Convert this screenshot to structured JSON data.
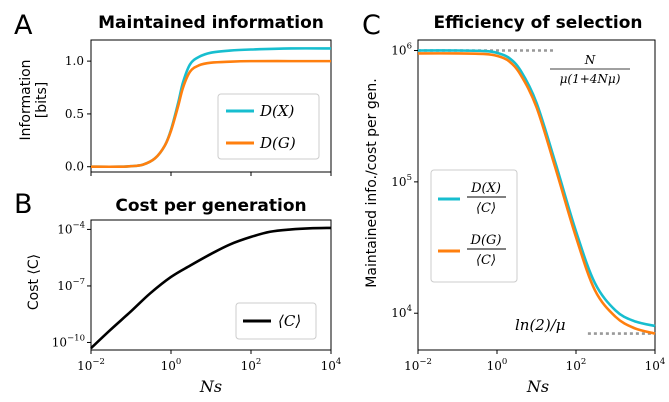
{
  "colors": {
    "dx": "#17becf",
    "dg": "#ff7f0e",
    "cost": "#000000",
    "ref": "#999999"
  },
  "chart_data": [
    {
      "panel": "A",
      "title": "Maintained information",
      "type": "line",
      "ylabel": [
        "Information",
        "[bits]"
      ],
      "xlabel": "",
      "xscale": "log",
      "xlim": [
        0.01,
        10000
      ],
      "ylim": [
        -0.05,
        1.2
      ],
      "yticks": [
        "0.0",
        "0.5",
        "1.0"
      ],
      "series": [
        {
          "name": "D(X)",
          "x": [
            0.01,
            0.05,
            0.1,
            0.2,
            0.4,
            0.7,
            1,
            1.5,
            2,
            3,
            5,
            10,
            30,
            100,
            1000,
            10000
          ],
          "y": [
            0,
            0,
            0.005,
            0.02,
            0.08,
            0.2,
            0.35,
            0.6,
            0.8,
            0.97,
            1.04,
            1.08,
            1.1,
            1.11,
            1.12,
            1.12
          ]
        },
        {
          "name": "D(G)",
          "x": [
            0.01,
            0.05,
            0.1,
            0.2,
            0.4,
            0.7,
            1,
            1.5,
            2,
            3,
            5,
            10,
            30,
            100,
            1000,
            10000
          ],
          "y": [
            0,
            0,
            0.005,
            0.02,
            0.08,
            0.2,
            0.34,
            0.57,
            0.75,
            0.9,
            0.96,
            0.985,
            0.995,
            1.0,
            1.0,
            1.0
          ]
        }
      ],
      "legend": "center-right"
    },
    {
      "panel": "B",
      "title": "Cost per generation",
      "type": "line",
      "ylabel": "Cost ⟨C⟩",
      "xlabel": "Ns",
      "xscale": "log",
      "yscale": "log",
      "xlim": [
        0.01,
        10000
      ],
      "yticks": [
        "10^-10",
        "10^-7",
        "10^-4"
      ],
      "xticks": [
        "10^-2",
        "10^0",
        "10^2",
        "10^4"
      ],
      "series": [
        {
          "name": "⟨C⟩",
          "x": [
            0.01,
            0.03,
            0.1,
            0.3,
            1,
            3,
            10,
            30,
            100,
            300,
            1000,
            3000,
            10000
          ],
          "y": [
            5e-11,
            4.5e-10,
            4.5e-09,
            4e-08,
            3e-07,
            1.2e-06,
            5e-06,
            1.6e-05,
            4e-05,
            7.5e-05,
            0.0001,
            0.000115,
            0.00012
          ]
        }
      ],
      "legend": "lower-right"
    },
    {
      "panel": "C",
      "title": "Efficiency of selection",
      "type": "line",
      "ylabel": "Maintained info./cost per gen.",
      "xlabel": "Ns",
      "xscale": "log",
      "yscale": "log",
      "xlim": [
        0.01,
        10000
      ],
      "yticks": [
        "10^4",
        "10^5",
        "10^6"
      ],
      "xticks": [
        "10^-2",
        "10^0",
        "10^2",
        "10^4"
      ],
      "series": [
        {
          "name": "D(X)/⟨C⟩",
          "x": [
            0.01,
            0.1,
            0.5,
            1,
            2,
            4,
            10,
            30,
            100,
            300,
            1000,
            3000,
            10000
          ],
          "y": [
            1000000,
            1000000,
            990000,
            960000,
            880000,
            700000,
            400000,
            140000,
            42000,
            17000,
            10500,
            8700,
            8000
          ]
        },
        {
          "name": "D(G)/⟨C⟩",
          "x": [
            0.01,
            0.1,
            0.5,
            1,
            2,
            4,
            10,
            30,
            100,
            300,
            1000,
            3000,
            10000
          ],
          "y": [
            950000,
            950000,
            940000,
            910000,
            830000,
            650000,
            370000,
            128000,
            38000,
            15000,
            9400,
            7700,
            7000
          ]
        }
      ],
      "reference_lines": [
        {
          "label": "N / μ(1+4Nμ)",
          "y": 1000000,
          "x_range": [
            0.01,
            30
          ]
        },
        {
          "label": "ln(2)/μ",
          "y": 7000,
          "x_range": [
            200,
            10000
          ]
        }
      ],
      "legend": "center-left"
    }
  ],
  "labels": {
    "panel_a": "A",
    "panel_b": "B",
    "panel_c": "C",
    "a_ylabel_1": "Information",
    "a_ylabel_2": "[bits]",
    "b_ylabel": "Cost ⟨C⟩",
    "c_ylabel": "Maintained info./cost per gen.",
    "xlabel": "Ns",
    "leg_dx": "D(X)",
    "leg_dg": "D(G)",
    "leg_c": "⟨C⟩",
    "leg_num_x": "D(X)",
    "leg_num_g": "D(G)",
    "leg_den": "⟨C⟩",
    "ann_top_num": "N",
    "ann_top_den": "μ(1+4Nμ)",
    "ann_bottom": "ln(2)/μ"
  }
}
